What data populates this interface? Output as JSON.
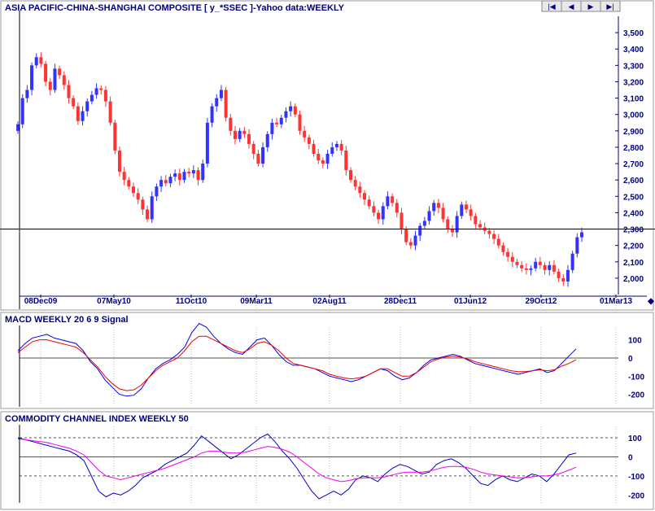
{
  "colors": {
    "up": "#3333ff",
    "down": "#ff3333",
    "macd": "#0000ee",
    "signal": "#ee0000",
    "cci": "#0000cc",
    "cci_avg": "#ee00ee",
    "axis_text": "#000080",
    "grid": "#bbbbbb"
  },
  "nav": {
    "icons": [
      "first-icon",
      "prev-icon",
      "next-icon",
      "last-icon"
    ]
  },
  "chart_data": [
    {
      "type": "candlestick",
      "title": "ASIA PACIFIC-CHINA-SHANGHAI COMPOSITE [ y_*SSEC ]-Yahoo data:WEEKLY",
      "ylim": [
        1900,
        3600
      ],
      "yticks": [
        2000,
        2100,
        2200,
        2300,
        2400,
        2500,
        2600,
        2700,
        2800,
        2900,
        3000,
        3100,
        3200,
        3300,
        3400,
        3500
      ],
      "ytick_labels": [
        "2,000",
        "2,100",
        "2,200",
        "2,300",
        "2,400",
        "2,500",
        "2,600",
        "2,700",
        "2,800",
        "2,900",
        "3,000",
        "3,100",
        "3,200",
        "3,300",
        "3,400",
        "3,500"
      ],
      "xlabels": [
        "08Dec09",
        "07May10",
        "11Oct10",
        "09Mar11",
        "02Aug11",
        "28Dec11",
        "01Jun12",
        "29Oct12",
        "01Mar13"
      ],
      "reference_line": 2300,
      "close": [
        2940,
        3100,
        3150,
        3300,
        3350,
        3310,
        3200,
        3150,
        3280,
        3240,
        3180,
        3100,
        3050,
        2960,
        3020,
        3080,
        3120,
        3160,
        3150,
        3080,
        2950,
        2780,
        2650,
        2600,
        2560,
        2520,
        2480,
        2420,
        2360,
        2500,
        2560,
        2600,
        2580,
        2620,
        2640,
        2600,
        2650,
        2640,
        2660,
        2600,
        2700,
        2950,
        3050,
        3100,
        3150,
        2980,
        2900,
        2850,
        2900,
        2880,
        2820,
        2760,
        2700,
        2800,
        2880,
        2950,
        2940,
        2980,
        3020,
        3050,
        3000,
        2900,
        2860,
        2820,
        2760,
        2720,
        2700,
        2760,
        2800,
        2820,
        2780,
        2660,
        2600,
        2560,
        2520,
        2480,
        2440,
        2400,
        2360,
        2440,
        2500,
        2460,
        2400,
        2300,
        2220,
        2200,
        2260,
        2320,
        2350,
        2410,
        2460,
        2430,
        2360,
        2300,
        2280,
        2380,
        2450,
        2420,
        2380,
        2330,
        2310,
        2290,
        2270,
        2240,
        2200,
        2160,
        2130,
        2100,
        2080,
        2060,
        2050,
        2060,
        2100,
        2080,
        2050,
        2080,
        2040,
        2000,
        1980,
        2050,
        2150,
        2250,
        2280
      ],
      "note": "candles rendered green=up (blue) / down (red); values approximate"
    },
    {
      "type": "line",
      "title": "MACD WEEKLY 20 6 9 Signal",
      "ylim": [
        -260,
        170
      ],
      "yticks": [
        100,
        0,
        -100,
        -200
      ],
      "ytick_labels": [
        "100",
        "0",
        "-100",
        "-200"
      ],
      "series": [
        {
          "name": "MACD",
          "values": [
            40,
            80,
            110,
            120,
            130,
            110,
            100,
            90,
            80,
            40,
            -20,
            -60,
            -120,
            -160,
            -200,
            -210,
            -205,
            -170,
            -110,
            -60,
            -30,
            -10,
            20,
            60,
            140,
            190,
            170,
            120,
            80,
            50,
            30,
            20,
            60,
            100,
            110,
            70,
            20,
            -20,
            -40,
            -40,
            -50,
            -60,
            -80,
            -100,
            -110,
            -120,
            -130,
            -120,
            -100,
            -80,
            -60,
            -70,
            -100,
            -120,
            -110,
            -80,
            -40,
            -10,
            0,
            10,
            20,
            10,
            -10,
            -30,
            -40,
            -50,
            -60,
            -70,
            -80,
            -90,
            -80,
            -70,
            -60,
            -80,
            -70,
            -30,
            10,
            50
          ]
        },
        {
          "name": "Signal",
          "values": [
            30,
            60,
            90,
            100,
            100,
            90,
            80,
            70,
            60,
            30,
            -10,
            -50,
            -100,
            -140,
            -170,
            -180,
            -175,
            -150,
            -110,
            -70,
            -40,
            -20,
            0,
            40,
            90,
            120,
            120,
            100,
            80,
            60,
            40,
            30,
            50,
            80,
            90,
            70,
            40,
            0,
            -30,
            -40,
            -50,
            -60,
            -70,
            -90,
            -100,
            -110,
            -115,
            -110,
            -100,
            -80,
            -60,
            -60,
            -80,
            -100,
            -100,
            -80,
            -50,
            -20,
            -5,
            5,
            10,
            5,
            -5,
            -20,
            -30,
            -40,
            -50,
            -60,
            -70,
            -75,
            -75,
            -70,
            -65,
            -70,
            -65,
            -45,
            -30,
            -10
          ]
        }
      ]
    },
    {
      "type": "line",
      "title": "COMMODITY CHANNEL INDEX WEEKLY 50",
      "ylim": [
        -250,
        160
      ],
      "yticks": [
        100,
        0,
        -100,
        -200
      ],
      "ytick_labels": [
        "100",
        "0",
        "-100",
        "-200"
      ],
      "reference_lines": [
        100,
        0,
        -100
      ],
      "series": [
        {
          "name": "CCI",
          "values": [
            100,
            90,
            80,
            70,
            60,
            50,
            40,
            30,
            10,
            -20,
            -100,
            -180,
            -210,
            -190,
            -200,
            -180,
            -150,
            -110,
            -90,
            -70,
            -40,
            -20,
            0,
            20,
            60,
            110,
            80,
            50,
            20,
            -10,
            10,
            40,
            70,
            100,
            120,
            80,
            30,
            -10,
            -60,
            -120,
            -180,
            -220,
            -200,
            -180,
            -200,
            -170,
            -120,
            -100,
            -110,
            -130,
            -90,
            -60,
            -40,
            -50,
            -70,
            -90,
            -80,
            -40,
            -20,
            -10,
            -30,
            -60,
            -100,
            -140,
            -150,
            -120,
            -100,
            -120,
            -130,
            -110,
            -90,
            -100,
            -130,
            -90,
            -40,
            10,
            20
          ]
        },
        {
          "name": "Average",
          "values": [
            95,
            90,
            85,
            80,
            75,
            65,
            55,
            45,
            30,
            10,
            -30,
            -70,
            -100,
            -110,
            -120,
            -110,
            -100,
            -90,
            -80,
            -70,
            -60,
            -45,
            -30,
            -15,
            0,
            20,
            30,
            30,
            25,
            20,
            20,
            25,
            35,
            45,
            55,
            50,
            40,
            25,
            0,
            -30,
            -60,
            -90,
            -110,
            -120,
            -130,
            -125,
            -115,
            -110,
            -110,
            -110,
            -105,
            -95,
            -85,
            -80,
            -80,
            -80,
            -75,
            -65,
            -55,
            -50,
            -50,
            -55,
            -65,
            -80,
            -90,
            -95,
            -100,
            -105,
            -110,
            -110,
            -105,
            -100,
            -100,
            -95,
            -85,
            -70,
            -55
          ]
        }
      ]
    }
  ]
}
